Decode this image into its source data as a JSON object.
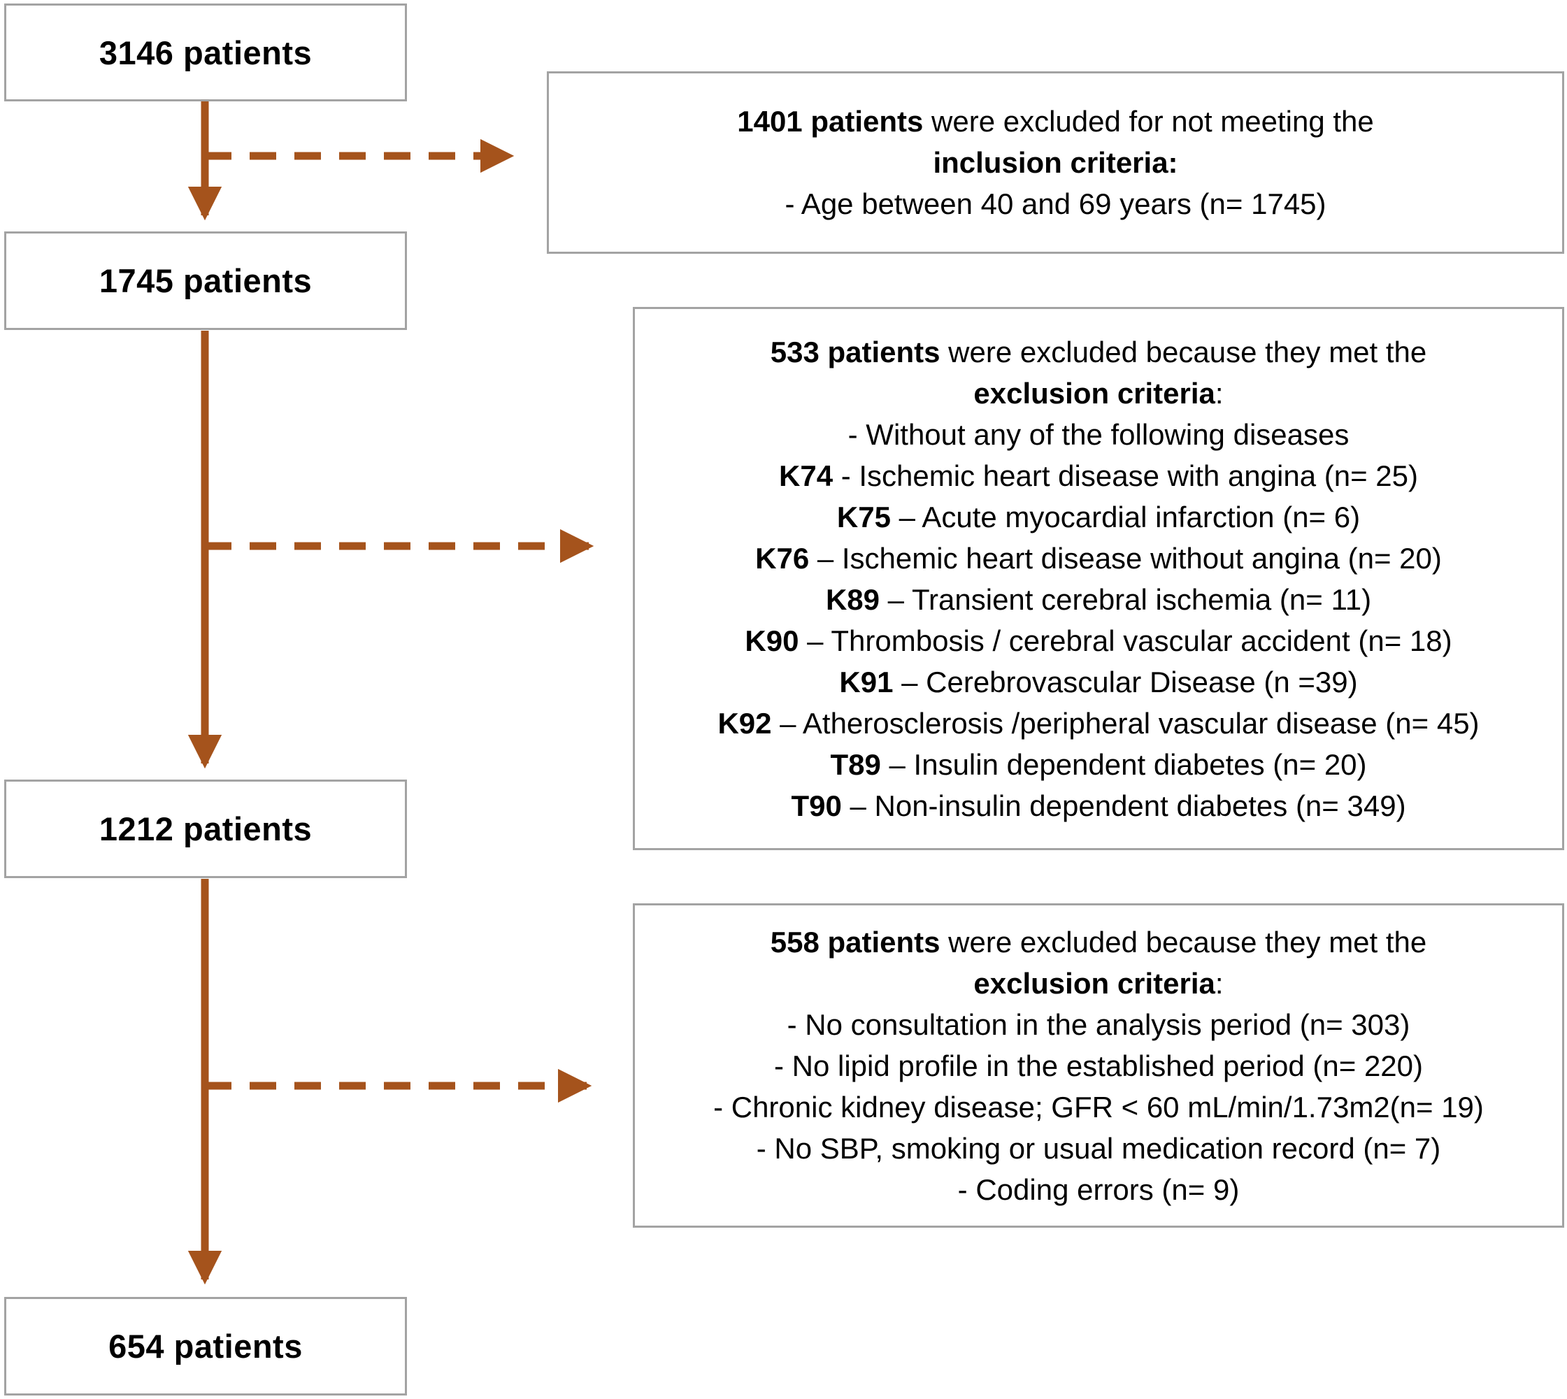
{
  "colors": {
    "arrow": "#A5531C",
    "box_border": "#A3A3A3",
    "text": "#000000",
    "background": "#FFFFFF"
  },
  "flow_nodes": [
    {
      "label": "3146 patients"
    },
    {
      "label": "1745 patients"
    },
    {
      "label": "1212 patients"
    },
    {
      "label": "654 patients"
    }
  ],
  "exclusion_boxes": [
    {
      "lines": [
        [
          {
            "text": "1401 patients",
            "bold": true
          },
          {
            "text": " were excluded for not meeting the",
            "bold": false
          }
        ],
        [
          {
            "text": "inclusion criteria:",
            "bold": true
          }
        ],
        [
          {
            "text": "- Age between 40 and 69 years (n= 1745)",
            "bold": false
          }
        ]
      ]
    },
    {
      "lines": [
        [
          {
            "text": "533 patients",
            "bold": true
          },
          {
            "text": " were excluded because they met the",
            "bold": false
          }
        ],
        [
          {
            "text": "exclusion criteria",
            "bold": true
          },
          {
            "text": ":",
            "bold": false
          }
        ],
        [
          {
            "text": "- Without any of the following diseases",
            "bold": false
          }
        ],
        [
          {
            "text": "K74",
            "bold": true
          },
          {
            "text": " - Ischemic heart disease with angina (n= 25)",
            "bold": false
          }
        ],
        [
          {
            "text": "K75",
            "bold": true
          },
          {
            "text": " – Acute myocardial infarction (n= 6)",
            "bold": false
          }
        ],
        [
          {
            "text": "K76",
            "bold": true
          },
          {
            "text": " – Ischemic heart disease without angina (n= 20)",
            "bold": false
          }
        ],
        [
          {
            "text": "K89",
            "bold": true
          },
          {
            "text": " – Transient cerebral ischemia (n= 11)",
            "bold": false
          }
        ],
        [
          {
            "text": "K90",
            "bold": true
          },
          {
            "text": " – Thrombosis / cerebral vascular accident (n= 18)",
            "bold": false
          }
        ],
        [
          {
            "text": "K91",
            "bold": true
          },
          {
            "text": " – Cerebrovascular Disease (n =39)",
            "bold": false
          }
        ],
        [
          {
            "text": "K92",
            "bold": true
          },
          {
            "text": " – Atherosclerosis /peripheral vascular disease (n= 45)",
            "bold": false
          }
        ],
        [
          {
            "text": "T89",
            "bold": true
          },
          {
            "text": " – Insulin dependent diabetes (n= 20)",
            "bold": false
          }
        ],
        [
          {
            "text": "T90",
            "bold": true
          },
          {
            "text": " – Non-insulin dependent diabetes (n= 349)",
            "bold": false
          }
        ]
      ]
    },
    {
      "lines": [
        [
          {
            "text": "558 patients",
            "bold": true
          },
          {
            "text": " were excluded because they met the",
            "bold": false
          }
        ],
        [
          {
            "text": "exclusion criteria",
            "bold": true
          },
          {
            "text": ":",
            "bold": false
          }
        ],
        [
          {
            "text": "- No consultation in the analysis period (n= 303)",
            "bold": false
          }
        ],
        [
          {
            "text": "- No lipid profile in the established period (n= 220)",
            "bold": false
          }
        ],
        [
          {
            "text": "- Chronic kidney disease; GFR < 60 mL/min/1.73m2(n= 19)",
            "bold": false
          }
        ],
        [
          {
            "text": "- No SBP, smoking or usual medication record (n= 7)",
            "bold": false
          }
        ],
        [
          {
            "text": "- Coding errors (n= 9)",
            "bold": false
          }
        ]
      ]
    }
  ]
}
